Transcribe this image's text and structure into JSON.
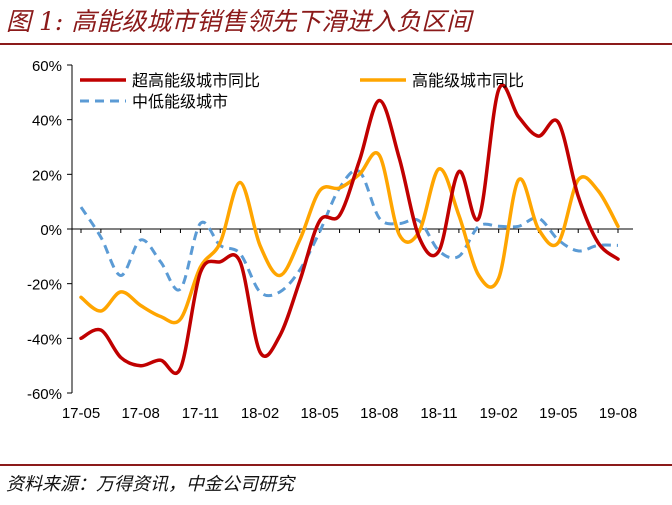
{
  "figure": {
    "title": "图 1:  高能级城市销售领先下滑进入负区间",
    "source": "资料来源：万得资讯，中金公司研究"
  },
  "chart_data": {
    "type": "line",
    "title": "高能级城市销售领先下滑进入负区间",
    "xlabel": "",
    "ylabel": "",
    "ylim": [
      -60,
      60
    ],
    "y_ticks": [
      "60%",
      "40%",
      "20%",
      "0%",
      "-20%",
      "-40%",
      "-60%"
    ],
    "x_ticks": [
      "17-05",
      "17-08",
      "17-11",
      "18-02",
      "18-05",
      "18-08",
      "18-11",
      "19-02",
      "19-05",
      "19-08"
    ],
    "x": [
      "17-05",
      "17-06",
      "17-07",
      "17-08",
      "17-09",
      "17-10",
      "17-11",
      "17-12",
      "18-01",
      "18-02",
      "18-03",
      "18-04",
      "18-05",
      "18-06",
      "18-07",
      "18-08",
      "18-09",
      "18-10",
      "18-11",
      "18-12",
      "19-01",
      "19-02",
      "19-03",
      "19-04",
      "19-05",
      "19-06",
      "19-07",
      "19-08"
    ],
    "grid": false,
    "legend_position": "top",
    "series": [
      {
        "name": "超高能级城市同比",
        "color": "#C00000",
        "dash": false,
        "values": [
          -40,
          -37,
          -47,
          -50,
          -48,
          -51,
          -16,
          -12,
          -12,
          -45,
          -39,
          -19,
          3,
          5,
          25,
          47,
          26,
          -3,
          -8,
          21,
          4,
          51,
          41,
          34,
          39,
          12,
          -5,
          -11
        ]
      },
      {
        "name": "高能级城市同比",
        "color": "#FFA500",
        "dash": false,
        "values": [
          -25,
          -30,
          -23,
          -28,
          -32,
          -33,
          -14,
          -5,
          17,
          -6,
          -17,
          -4,
          14,
          15,
          20,
          27,
          -2,
          -1,
          22,
          5,
          -17,
          -18,
          18,
          0,
          -5,
          18,
          14,
          1
        ]
      },
      {
        "name": "中低能级城市",
        "color": "#5B9BD5",
        "dash": true,
        "values": [
          8,
          -3,
          -17,
          -4,
          -12,
          -22,
          2,
          -6,
          -9,
          -23,
          -23,
          -15,
          -1,
          15,
          21,
          4,
          2,
          3,
          -8,
          -10,
          1,
          1,
          1,
          4,
          -4,
          -8,
          -6,
          -6
        ]
      }
    ]
  }
}
